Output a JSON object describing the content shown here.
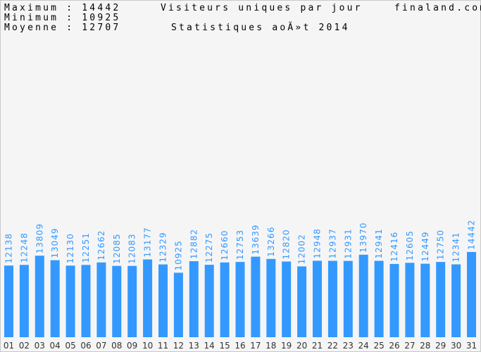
{
  "header": {
    "max_line": "Maximum : 14442",
    "min_line": "Minimum : 10925",
    "avg_line": "Moyenne : 12707",
    "title": "Visiteurs uniques par jour",
    "subtitle": "Statistiques aoÃ»t 2014",
    "site": "finaland.com"
  },
  "colors": {
    "bar": "#3399ff",
    "value_label": "#3399ff",
    "axis_label": "#333333",
    "background": "#f5f5f5"
  },
  "chart_data": {
    "type": "bar",
    "title": "Visiteurs uniques par jour",
    "subtitle": "Statistiques aoÃ»t 2014",
    "categories": [
      "01",
      "02",
      "03",
      "04",
      "05",
      "06",
      "07",
      "08",
      "09",
      "10",
      "11",
      "12",
      "13",
      "14",
      "15",
      "16",
      "17",
      "18",
      "19",
      "20",
      "21",
      "22",
      "23",
      "24",
      "25",
      "26",
      "27",
      "28",
      "29",
      "30",
      "31"
    ],
    "values": [
      12138,
      12248,
      13809,
      13049,
      12130,
      12251,
      12662,
      12085,
      12083,
      13177,
      12329,
      10925,
      12882,
      12275,
      12660,
      12753,
      13639,
      13266,
      12820,
      12002,
      12948,
      12937,
      12931,
      13970,
      12941,
      12416,
      12605,
      12449,
      12750,
      12341,
      14442
    ],
    "ylim": [
      0,
      57000
    ],
    "data_labels": true,
    "grid": false
  }
}
